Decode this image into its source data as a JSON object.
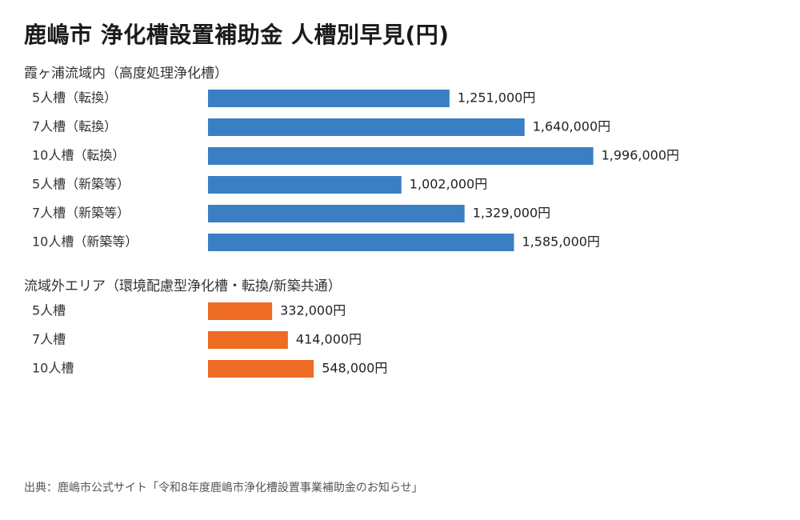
{
  "title": "鹿嶋市 浄化槽設置補助金 人槽別早見(円)",
  "source": "出典：鹿嶋市公式サイト「令和8年度鹿嶋市浄化槽設置事業補助金のお知らせ」",
  "colors": {
    "group1": "#3a7fc4",
    "group2": "#ef6c24"
  },
  "chart_data": {
    "type": "bar",
    "orientation": "horizontal",
    "unit": "円",
    "xlim": [
      0,
      2300000
    ],
    "groups": [
      {
        "label": "霞ヶ浦流域内（高度処理浄化槽）",
        "color": "#3a7fc4",
        "categories": [
          "5人槽（転換）",
          "7人槽（転換）",
          "10人槽（転換）",
          "5人槽（新築等）",
          "7人槽（新築等）",
          "10人槽（新築等）"
        ],
        "values": [
          1251000,
          1640000,
          1996000,
          1002000,
          1329000,
          1585000
        ],
        "value_labels": [
          "1,251,000円",
          "1,640,000円",
          "1,996,000円",
          "1,002,000円",
          "1,329,000円",
          "1,585,000円"
        ]
      },
      {
        "label": "流域外エリア（環境配慮型浄化槽・転換/新築共通）",
        "color": "#ef6c24",
        "categories": [
          "5人槽",
          "7人槽",
          "10人槽"
        ],
        "values": [
          332000,
          414000,
          548000
        ],
        "value_labels": [
          "332,000円",
          "414,000円",
          "548,000円"
        ]
      }
    ]
  }
}
